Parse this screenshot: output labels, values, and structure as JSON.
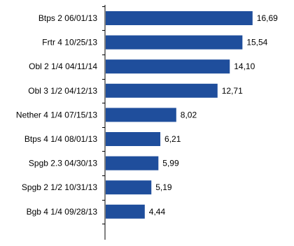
{
  "chart_data": {
    "type": "bar",
    "orientation": "horizontal",
    "categories": [
      "Btps 2 06/01/13",
      "Frtr 4 10/25/13",
      "Obl 2 1/4 04/11/14",
      "Obl 3 1/2 04/12/13",
      "Nether 4 1/4 07/15/13",
      "Btps 4 1/4 08/01/13",
      "Spgb 2.3 04/30/13",
      "Spgb 2 1/2 10/31/13",
      "Bgb 4 1/4 09/28/13"
    ],
    "values": [
      16.69,
      15.54,
      14.1,
      12.71,
      8.02,
      6.21,
      5.99,
      5.19,
      4.44
    ],
    "data_labels": [
      "16,69",
      "15,54",
      "14,10",
      "12,71",
      "8,02",
      "6,21",
      "5,99",
      "5,19",
      "4,44"
    ],
    "title": "",
    "xlabel": "",
    "ylabel": "",
    "xlim": [
      0,
      18
    ],
    "grid": false,
    "colors": {
      "bar": "#1f4e9c",
      "axis": "#000000",
      "text": "#000000"
    }
  }
}
